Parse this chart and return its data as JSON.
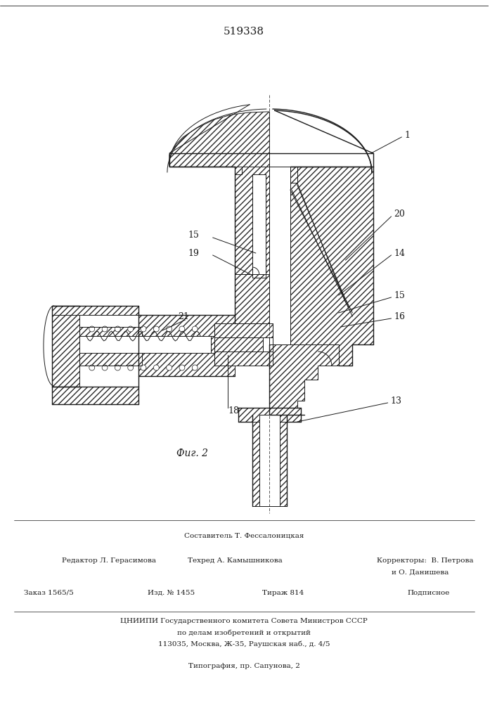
{
  "patent_number": "519338",
  "fig_label": "Фиг. 2",
  "bg_color": "#ffffff",
  "line_color": "#1a1a1a",
  "hatch_color": "#2a2a2a",
  "footer": {
    "line1": "Составитель Т. Фессалоницкая",
    "editor": "Редактор Л. Герасимова",
    "tech": "Техред А. Камышникова",
    "corr1": "Корректоры:  В. Петрова",
    "corr2": "и О. Данишева",
    "order": "Заказ 1565/5",
    "izd": "Изд. № 1455",
    "tirazh": "Тираж 814",
    "podp": "Подписное",
    "cniip1": "ЦНИИПИ Государственного комитета Совета Министров СССР",
    "cniip2": "по делам изобретений и открытий",
    "addr": "113035, Москва, Ж-35, Раушская наб., д. 4/5",
    "typo": "Типография, пр. Сапунова, 2"
  }
}
